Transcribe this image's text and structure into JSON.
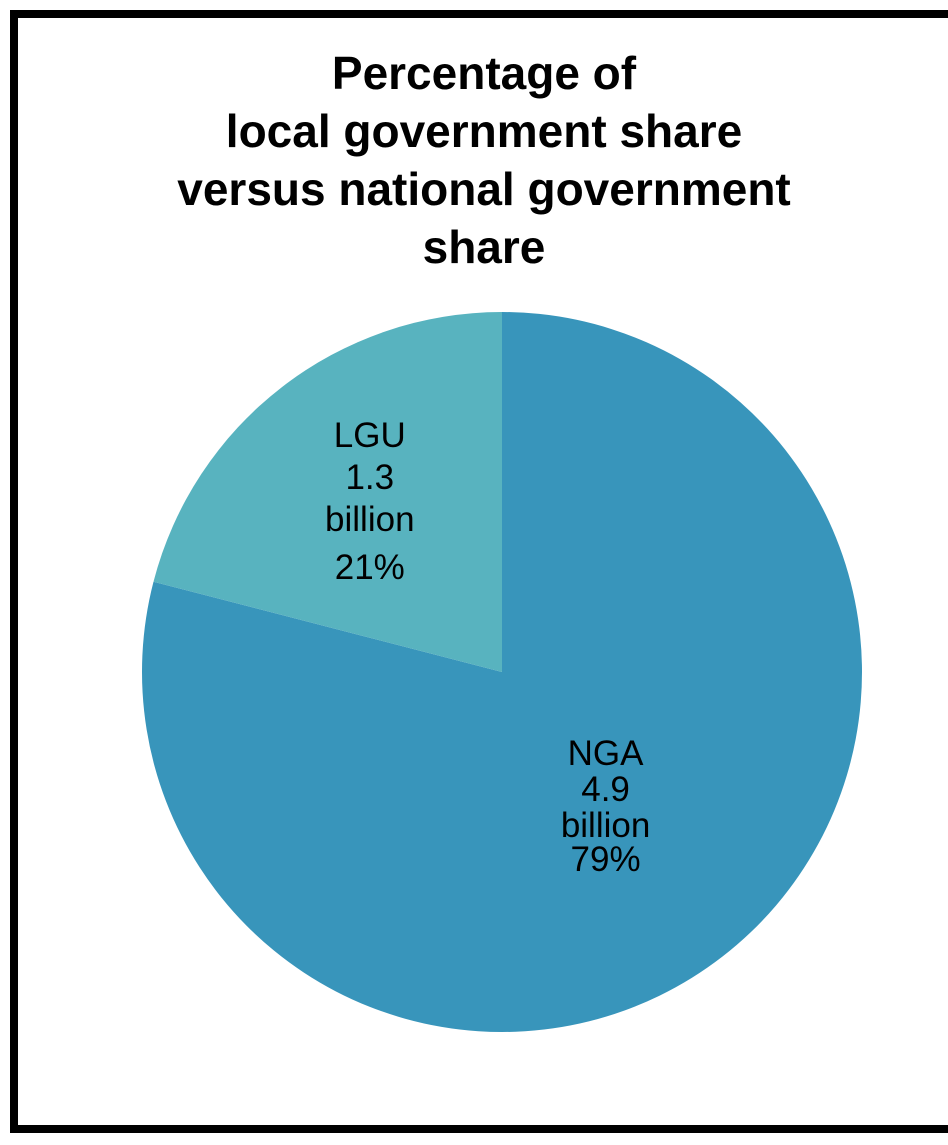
{
  "chart_data": {
    "type": "pie",
    "title": "Percentage of local government share versus national government share",
    "title_lines": [
      "Percentage of",
      "local government share",
      "versus national government",
      "share"
    ],
    "start_angle": "12 o'clock",
    "direction": "clockwise",
    "slices": [
      {
        "name": "NGA",
        "value": 4.9,
        "unit": "billion",
        "percent": 79,
        "color": "#3895bb",
        "label_lines": [
          "NGA",
          "4.9",
          "billion",
          "79%"
        ]
      },
      {
        "name": "LGU",
        "value": 1.3,
        "unit": "billion",
        "percent": 21,
        "color": "#58b3bf",
        "label_lines": [
          "LGU",
          "1.3",
          "billion",
          "21%"
        ]
      }
    ],
    "legend": "none"
  }
}
